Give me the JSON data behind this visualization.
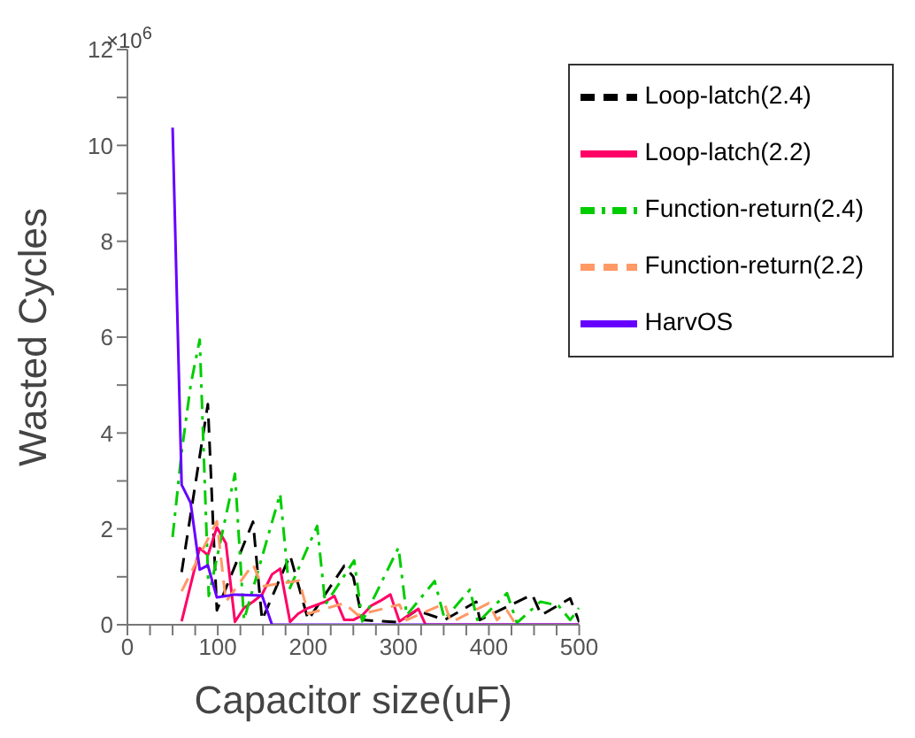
{
  "chart_data": {
    "type": "line",
    "xlabel": "Capacitor size(uF)",
    "ylabel": "Wasted Cycles",
    "annotations": [
      "×10$^{6}$"
    ],
    "xlim": [
      0,
      500
    ],
    "xticks": [
      0,
      {
        "value": 25,
        "label": null
      },
      {
        "value": 50,
        "label": null
      },
      {
        "value": 75,
        "label": null
      },
      100,
      {
        "value": 125,
        "label": null
      },
      {
        "value": 150,
        "label": null
      },
      {
        "value": 175,
        "label": null
      },
      200,
      {
        "value": 225,
        "label": null
      },
      {
        "value": 250,
        "label": null
      },
      {
        "value": 275,
        "label": null
      },
      300,
      {
        "value": 325,
        "label": null
      },
      {
        "value": 350,
        "label": null
      },
      {
        "value": 375,
        "label": null
      },
      400,
      {
        "value": 425,
        "label": null
      },
      {
        "value": 450,
        "label": null
      },
      {
        "value": 475,
        "label": null
      },
      500
    ],
    "ylim": [
      0,
      12
    ],
    "yticks": [
      0,
      {
        "value": 1,
        "label": null
      },
      2,
      {
        "value": 3,
        "label": null
      },
      4,
      {
        "value": 5,
        "label": null
      },
      6,
      {
        "value": 7,
        "label": null
      },
      8,
      {
        "value": 9,
        "label": null
      },
      10,
      {
        "value": 11,
        "label": null
      },
      12
    ],
    "grid": false,
    "legend": "top right",
    "marker": "none",
    "series": [
      {
        "name": "Loop-latch(2.4)",
        "color": "#000000",
        "line_style": "dashed",
        "x": [
          60,
          89,
          99,
          139,
          149,
          180,
          200,
          240,
          250,
          260,
          300,
          320,
          351,
          386,
          390,
          448,
          458,
          490,
          500
        ],
        "values": [
          1.1,
          4.6,
          0.3,
          2.15,
          0.1,
          1.45,
          0.1,
          1.23,
          1.0,
          0.1,
          0.05,
          0.3,
          0.1,
          0.48,
          0.1,
          0.63,
          0.2,
          0.55,
          0.05
        ]
      },
      {
        "name": "Loop-latch(2.2)",
        "color": "#ff0066",
        "line_style": "solid",
        "x": [
          60,
          80,
          89,
          99,
          109,
          119,
          129,
          139,
          149,
          160,
          169,
          180,
          189,
          200,
          219,
          229,
          240,
          250,
          260,
          270,
          280,
          291,
          301,
          322,
          330,
          500
        ],
        "values": [
          0.07,
          1.6,
          1.45,
          2.03,
          1.7,
          0.06,
          0.35,
          0.48,
          0.63,
          1.05,
          1.17,
          0.06,
          0.23,
          0.35,
          0.48,
          0.6,
          0.1,
          0.1,
          0.2,
          0.4,
          0.5,
          0.63,
          0.07,
          0.33,
          0,
          0
        ]
      },
      {
        "name": "Function-return(2.4)",
        "color": "#00cc00",
        "line_style": "dashdot",
        "x": [
          50,
          60,
          70,
          80,
          90,
          119,
          129,
          169,
          179,
          210,
          219,
          251,
          260,
          300,
          309,
          340,
          351,
          379,
          388,
          420,
          431,
          457,
          477,
          490,
          500
        ],
        "values": [
          1.83,
          3.6,
          5.0,
          5.95,
          0.6,
          3.15,
          0.1,
          2.73,
          0.73,
          2.06,
          0.42,
          1.34,
          0.07,
          1.61,
          0.2,
          0.91,
          0.12,
          0.73,
          0.05,
          0.66,
          0.04,
          0.48,
          0.4,
          0.1,
          0.35
        ]
      },
      {
        "name": "Function-return(2.2)",
        "color": "#ff9966",
        "line_style": "dashed",
        "x": [
          60,
          99,
          109,
          139,
          149,
          190,
          200,
          240,
          255,
          301,
          309,
          351,
          358,
          400,
          409,
          420,
          430
        ],
        "values": [
          0.7,
          2.16,
          0.48,
          1.26,
          0.8,
          0.92,
          0.23,
          0.45,
          0.2,
          0.42,
          0.1,
          0.44,
          0.05,
          0.45,
          0.1,
          0.3,
          0
        ]
      },
      {
        "name": "HarvOS",
        "color": "#6600ff",
        "line_style": "solid",
        "x": [
          50,
          60,
          70,
          80,
          89,
          99,
          119,
          149,
          160,
          500
        ],
        "values": [
          10.37,
          2.92,
          2.54,
          1.15,
          1.24,
          0.57,
          0.63,
          0.61,
          0,
          0
        ]
      }
    ]
  }
}
